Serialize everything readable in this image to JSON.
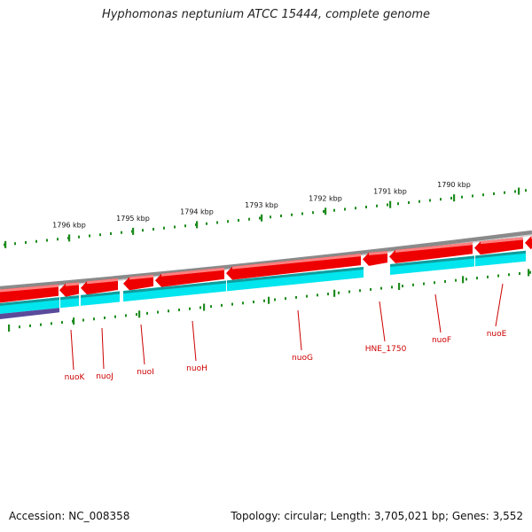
{
  "title": "Hyphomonas neptunium ATCC 15444, complete genome",
  "accession": "Accession: NC_008358",
  "topology": "Topology: circular; Length: 3,705,021 bp; Genes: 3,552",
  "colors": {
    "backbone": "#8a8a8a",
    "gene_forward": "#ee0000",
    "cds": "#00e5ee",
    "tick": "#1e8c1e",
    "label": "#cc0000",
    "purple": "#5b4a9a"
  },
  "scale": {
    "unit": "kbp",
    "labels": [
      "1796 kbp",
      "1795 kbp",
      "1794 kbp",
      "1793 kbp",
      "1792 kbp",
      "1791 kbp",
      "1790 kbp"
    ],
    "positions_kbp": [
      1796,
      1795,
      1794,
      1793,
      1792,
      1791,
      1790
    ]
  },
  "genes": [
    {
      "name": "nuoK"
    },
    {
      "name": "nuoJ"
    },
    {
      "name": "nuoI"
    },
    {
      "name": "nuoH"
    },
    {
      "name": "nuoG"
    },
    {
      "name": "HNE_1750"
    },
    {
      "name": "nuoF"
    },
    {
      "name": "nuoE"
    }
  ]
}
